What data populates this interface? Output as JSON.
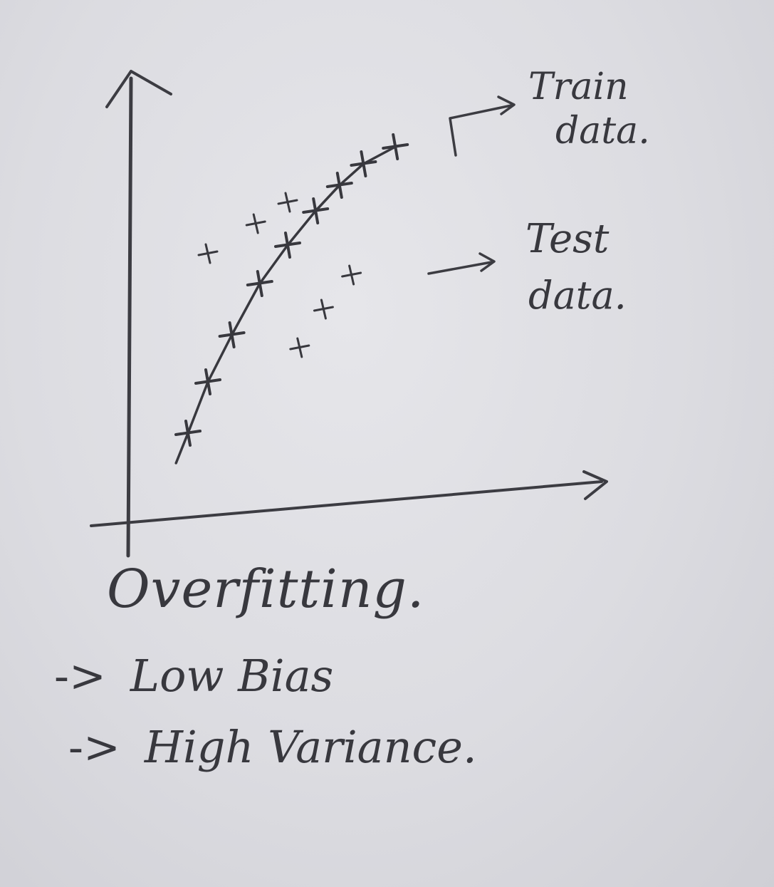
{
  "chart_data": {
    "type": "scatter",
    "title": "",
    "xlabel": "",
    "ylabel": "",
    "xlim": [
      0,
      10
    ],
    "ylim": [
      0,
      10
    ],
    "grid": false,
    "series": [
      {
        "name": "Train data",
        "style": "cross-on-curve",
        "x": [
          1.5,
          2.0,
          2.6,
          3.3,
          4.0,
          4.7,
          5.3,
          5.9,
          6.7
        ],
        "y": [
          2.1,
          3.3,
          4.4,
          5.6,
          6.5,
          7.3,
          7.9,
          8.4,
          8.8
        ]
      },
      {
        "name": "Test data",
        "style": "cross",
        "x": [
          2.0,
          3.2,
          4.0,
          4.3,
          4.9,
          5.6
        ],
        "y": [
          6.3,
          7.0,
          7.5,
          4.1,
          5.0,
          5.8
        ]
      }
    ],
    "fit_curve": {
      "x": [
        1.2,
        1.5,
        2.0,
        2.6,
        3.3,
        4.0,
        4.7,
        5.3,
        5.9,
        6.7
      ],
      "y": [
        1.4,
        2.1,
        3.3,
        4.4,
        5.6,
        6.5,
        7.3,
        7.9,
        8.4,
        8.8
      ]
    },
    "annotations": [
      {
        "target_series": 0,
        "lines": [
          "Train",
          "data."
        ]
      },
      {
        "target_series": 1,
        "lines": [
          "Test",
          "data."
        ]
      }
    ]
  },
  "notes": {
    "title": "Overfitting.",
    "bullets": [
      {
        "arrow": "->",
        "text": "Low Bias"
      },
      {
        "arrow": "->",
        "text": "High Variance."
      }
    ]
  },
  "colors": {
    "ink": "#38383e",
    "paper": "#dedee3"
  }
}
